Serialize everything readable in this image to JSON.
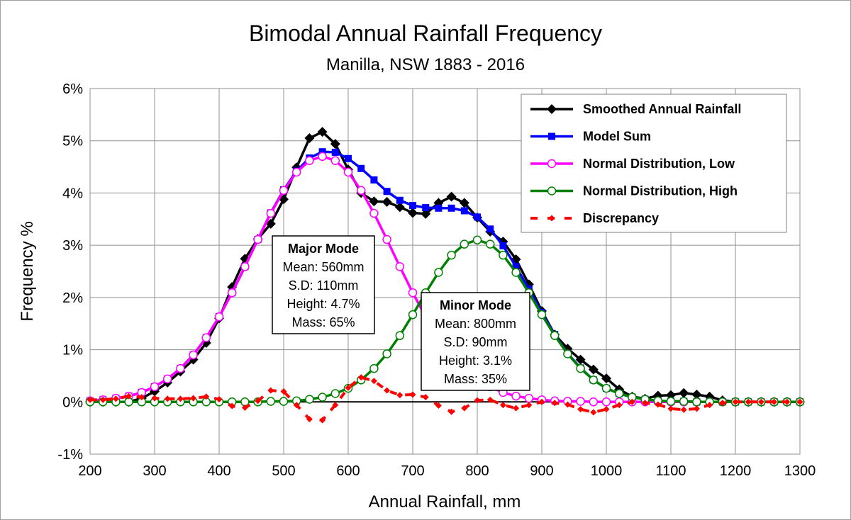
{
  "chart_data": {
    "type": "line",
    "title": "Bimodal Annual Rainfall Frequency",
    "subtitle": "Manilla, NSW 1883 - 2016",
    "xlabel": "Annual Rainfall, mm",
    "ylabel": "Frequency %",
    "xlim": [
      200,
      1300
    ],
    "ylim": [
      -1,
      6
    ],
    "xticks": [
      "200",
      "300",
      "400",
      "500",
      "600",
      "700",
      "800",
      "900",
      "1000",
      "1100",
      "1200",
      "1300"
    ],
    "yticks": [
      "-1%",
      "0%",
      "1%",
      "2%",
      "3%",
      "4%",
      "5%",
      "6%"
    ],
    "grid": true,
    "legend_position": "top-right",
    "x": [
      200,
      220,
      240,
      260,
      280,
      300,
      320,
      340,
      360,
      380,
      400,
      420,
      440,
      460,
      480,
      500,
      520,
      540,
      560,
      580,
      600,
      620,
      640,
      660,
      680,
      700,
      720,
      740,
      760,
      780,
      800,
      820,
      840,
      860,
      880,
      900,
      920,
      940,
      960,
      980,
      1000,
      1020,
      1040,
      1060,
      1080,
      1100,
      1120,
      1140,
      1160,
      1180,
      1200,
      1220,
      1240,
      1260,
      1280,
      1300
    ],
    "series": [
      {
        "name": "Smoothed Annual Rainfall",
        "color": "#000000",
        "marker": "diamond",
        "line": "solid",
        "values": [
          0,
          0,
          0,
          0,
          0.07,
          0.2,
          0.37,
          0.58,
          0.81,
          1.13,
          1.6,
          2.2,
          2.74,
          3.12,
          3.41,
          3.88,
          4.49,
          5.05,
          5.17,
          4.94,
          4.45,
          4.0,
          3.84,
          3.83,
          3.73,
          3.62,
          3.6,
          3.81,
          3.93,
          3.81,
          3.53,
          3.26,
          3.07,
          2.73,
          2.25,
          1.74,
          1.29,
          1.02,
          0.81,
          0.62,
          0.45,
          0.24,
          0.1,
          0.06,
          0.12,
          0.13,
          0.17,
          0.14,
          0.1,
          0.03,
          0,
          0,
          0,
          0,
          0,
          0
        ]
      },
      {
        "name": "Model Sum",
        "color": "#0000ff",
        "marker": "square",
        "line": "solid",
        "values": [
          0.02,
          0.04,
          0.07,
          0.11,
          0.18,
          0.29,
          0.44,
          0.64,
          0.9,
          1.23,
          1.63,
          2.09,
          2.59,
          3.11,
          3.62,
          4.06,
          4.42,
          4.67,
          4.79,
          4.78,
          4.66,
          4.47,
          4.25,
          4.03,
          3.86,
          3.76,
          3.72,
          3.71,
          3.71,
          3.66,
          3.54,
          3.31,
          2.99,
          2.59,
          2.16,
          1.71,
          1.29,
          0.93,
          0.65,
          0.42,
          0.26,
          0.16,
          0.09,
          0.05,
          0.02,
          0.01,
          0.01,
          0,
          0,
          0,
          0,
          0,
          0,
          0,
          0,
          0
        ]
      },
      {
        "name": "Normal Distribution, Low",
        "color": "#ff00ff",
        "marker": "circle",
        "line": "solid",
        "values": [
          0.02,
          0.04,
          0.07,
          0.11,
          0.18,
          0.29,
          0.44,
          0.64,
          0.9,
          1.23,
          1.63,
          2.09,
          2.59,
          3.11,
          3.61,
          4.05,
          4.4,
          4.62,
          4.7,
          4.62,
          4.4,
          4.05,
          3.61,
          3.11,
          2.59,
          2.09,
          1.63,
          1.23,
          0.9,
          0.64,
          0.44,
          0.29,
          0.18,
          0.11,
          0.07,
          0.04,
          0.02,
          0.01,
          0.01,
          0,
          0,
          0,
          0,
          0,
          0,
          0,
          0,
          0,
          0,
          0,
          0,
          0,
          0,
          0,
          0,
          0
        ]
      },
      {
        "name": "Normal Distribution, High",
        "color": "#008000",
        "marker": "circle",
        "line": "solid",
        "values": [
          0,
          0,
          0,
          0,
          0,
          0,
          0,
          0,
          0,
          0,
          0,
          0,
          0,
          0,
          0.01,
          0.01,
          0.02,
          0.05,
          0.09,
          0.16,
          0.26,
          0.42,
          0.64,
          0.92,
          1.27,
          1.67,
          2.09,
          2.48,
          2.81,
          3.02,
          3.1,
          3.02,
          2.81,
          2.48,
          2.09,
          1.67,
          1.27,
          0.92,
          0.64,
          0.42,
          0.26,
          0.16,
          0.09,
          0.05,
          0.02,
          0.01,
          0.01,
          0,
          0,
          0,
          0,
          0,
          0,
          0,
          0,
          0
        ]
      },
      {
        "name": "Discrepancy",
        "color": "#ff0000",
        "marker": "diamond",
        "line": "dashed",
        "values": [
          0.04,
          0.04,
          0.06,
          0.11,
          0.09,
          0.07,
          0.06,
          0.06,
          0.07,
          0.1,
          0.05,
          -0.08,
          -0.11,
          0.02,
          0.22,
          0.2,
          -0.06,
          -0.33,
          -0.35,
          -0.06,
          0.27,
          0.47,
          0.4,
          0.22,
          0.13,
          0.14,
          0.09,
          -0.07,
          -0.19,
          -0.12,
          0.03,
          0.04,
          -0.06,
          -0.12,
          -0.06,
          0,
          -0.02,
          -0.05,
          -0.14,
          -0.2,
          -0.14,
          -0.06,
          0,
          -0.02,
          -0.05,
          -0.13,
          -0.15,
          -0.13,
          -0.06,
          -0.02,
          0,
          0,
          0,
          0,
          0,
          0
        ]
      }
    ],
    "annotations": [
      {
        "title": "Major Mode",
        "lines": [
          "Mean: 560mm",
          "S.D: 110mm",
          "Height: 4.7%",
          "Mass: 65%"
        ]
      },
      {
        "title": "Minor Mode",
        "lines": [
          "Mean: 800mm",
          "S.D: 90mm",
          "Height: 3.1%",
          "Mass: 35%"
        ]
      }
    ]
  }
}
